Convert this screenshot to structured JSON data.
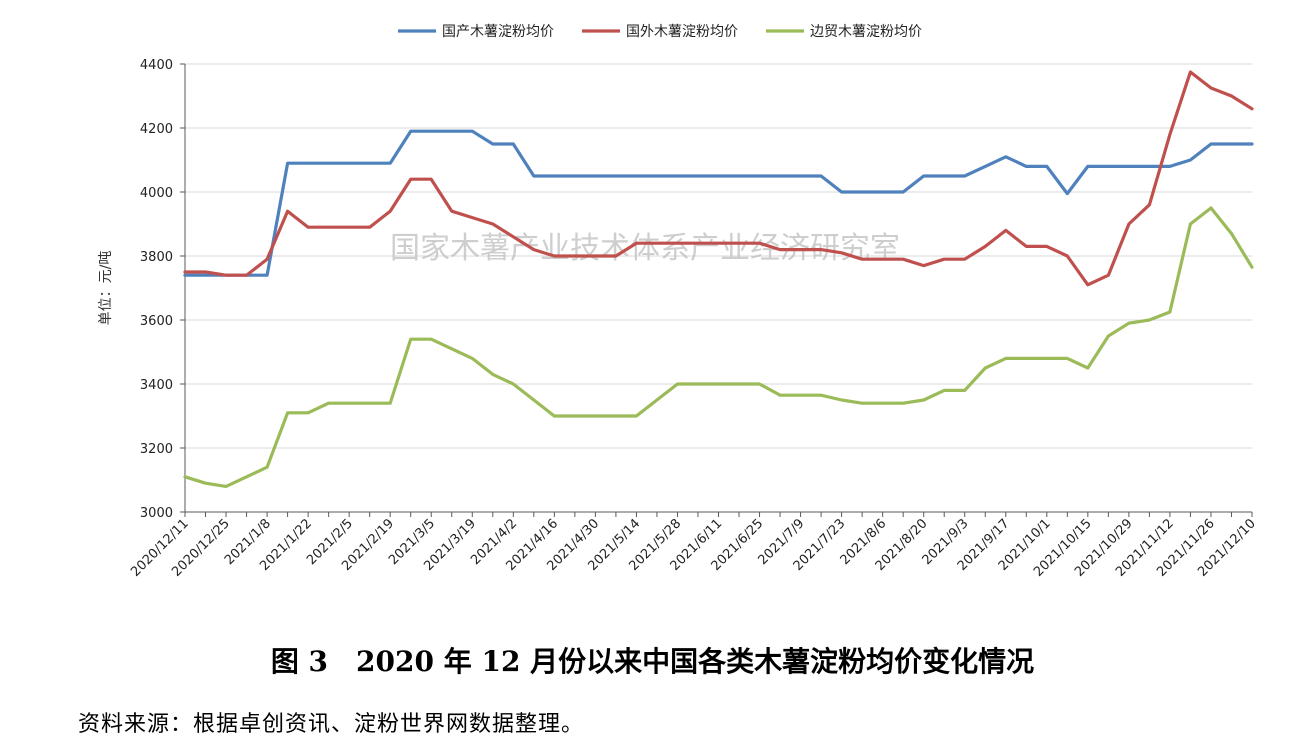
{
  "chart_data": {
    "type": "line",
    "title": "",
    "ylabel": "单位：元/吨",
    "ylim": [
      3000,
      4400
    ],
    "yticks": [
      3000,
      3200,
      3400,
      3600,
      3800,
      4000,
      4200,
      4400
    ],
    "grid": true,
    "legend": "top-center",
    "x": [
      "2020/12/11",
      "2020/12/18",
      "2020/12/25",
      "2021/1/1",
      "2021/1/8",
      "2021/1/15",
      "2021/1/22",
      "2021/1/29",
      "2021/2/5",
      "2021/2/12",
      "2021/2/19",
      "2021/2/26",
      "2021/3/5",
      "2021/3/12",
      "2021/3/19",
      "2021/3/26",
      "2021/4/2",
      "2021/4/9",
      "2021/4/16",
      "2021/4/23",
      "2021/4/30",
      "2021/5/7",
      "2021/5/14",
      "2021/5/21",
      "2021/5/28",
      "2021/6/4",
      "2021/6/11",
      "2021/6/18",
      "2021/6/25",
      "2021/7/2",
      "2021/7/9",
      "2021/7/16",
      "2021/7/23",
      "2021/7/30",
      "2021/8/6",
      "2021/8/13",
      "2021/8/20",
      "2021/8/27",
      "2021/9/3",
      "2021/9/10",
      "2021/9/17",
      "2021/9/24",
      "2021/10/1",
      "2021/10/8",
      "2021/10/15",
      "2021/10/22",
      "2021/10/29",
      "2021/11/5",
      "2021/11/12",
      "2021/11/19",
      "2021/11/26",
      "2021/12/3",
      "2021/12/10"
    ],
    "xtick_labels": [
      "2020/12/11",
      "2020/12/25",
      "2021/1/8",
      "2021/1/22",
      "2021/2/5",
      "2021/2/19",
      "2021/3/5",
      "2021/3/19",
      "2021/4/2",
      "2021/4/16",
      "2021/4/30",
      "2021/5/14",
      "2021/5/28",
      "2021/6/11",
      "2021/6/25",
      "2021/7/9",
      "2021/7/23",
      "2021/8/6",
      "2021/8/20",
      "2021/9/3",
      "2021/9/17",
      "2021/10/1",
      "2021/10/15",
      "2021/10/29",
      "2021/11/12",
      "2021/11/26",
      "2021/12/10"
    ],
    "series": [
      {
        "name": "国产木薯淀粉均价",
        "color": "#4f81bd",
        "values": [
          3740,
          3740,
          3740,
          3740,
          3740,
          4090,
          4090,
          4090,
          4090,
          4090,
          4090,
          4190,
          4190,
          4190,
          4190,
          4150,
          4150,
          4050,
          4050,
          4050,
          4050,
          4050,
          4050,
          4050,
          4050,
          4050,
          4050,
          4050,
          4050,
          4050,
          4050,
          4050,
          4000,
          4000,
          4000,
          4000,
          4050,
          4050,
          4050,
          4080,
          4110,
          4080,
          4080,
          3995,
          4080,
          4080,
          4080,
          4080,
          4080,
          4100,
          4150,
          4150,
          4150
        ]
      },
      {
        "name": "国外木薯淀粉均价",
        "color": "#c0504d",
        "values": [
          3750,
          3750,
          3740,
          3740,
          3790,
          3940,
          3890,
          3890,
          3890,
          3890,
          3940,
          4040,
          4040,
          3940,
          3920,
          3900,
          3860,
          3820,
          3800,
          3800,
          3800,
          3800,
          3840,
          3840,
          3840,
          3840,
          3840,
          3840,
          3840,
          3820,
          3820,
          3820,
          3810,
          3790,
          3790,
          3790,
          3770,
          3790,
          3790,
          3830,
          3880,
          3830,
          3830,
          3800,
          3710,
          3740,
          3900,
          3960,
          4180,
          4375,
          4325,
          4300,
          4260
        ]
      },
      {
        "name": "边贸木薯淀粉均价",
        "color": "#9bbb59",
        "values": [
          3110,
          3090,
          3080,
          3110,
          3140,
          3310,
          3310,
          3340,
          3340,
          3340,
          3340,
          3540,
          3540,
          3510,
          3480,
          3430,
          3400,
          3350,
          3300,
          3300,
          3300,
          3300,
          3300,
          3350,
          3400,
          3400,
          3400,
          3400,
          3400,
          3365,
          3365,
          3365,
          3350,
          3340,
          3340,
          3340,
          3350,
          3380,
          3380,
          3450,
          3480,
          3480,
          3480,
          3480,
          3450,
          3550,
          3590,
          3600,
          3625,
          3900,
          3950,
          3870,
          3765
        ]
      }
    ]
  },
  "watermark": "国家木薯产业技术体系产业经济研究室",
  "caption": "图 3　2020 年 12 月份以来中国各类木薯淀粉均价变化情况",
  "source": "资料来源：根据卓创资讯、淀粉世界网数据整理。"
}
